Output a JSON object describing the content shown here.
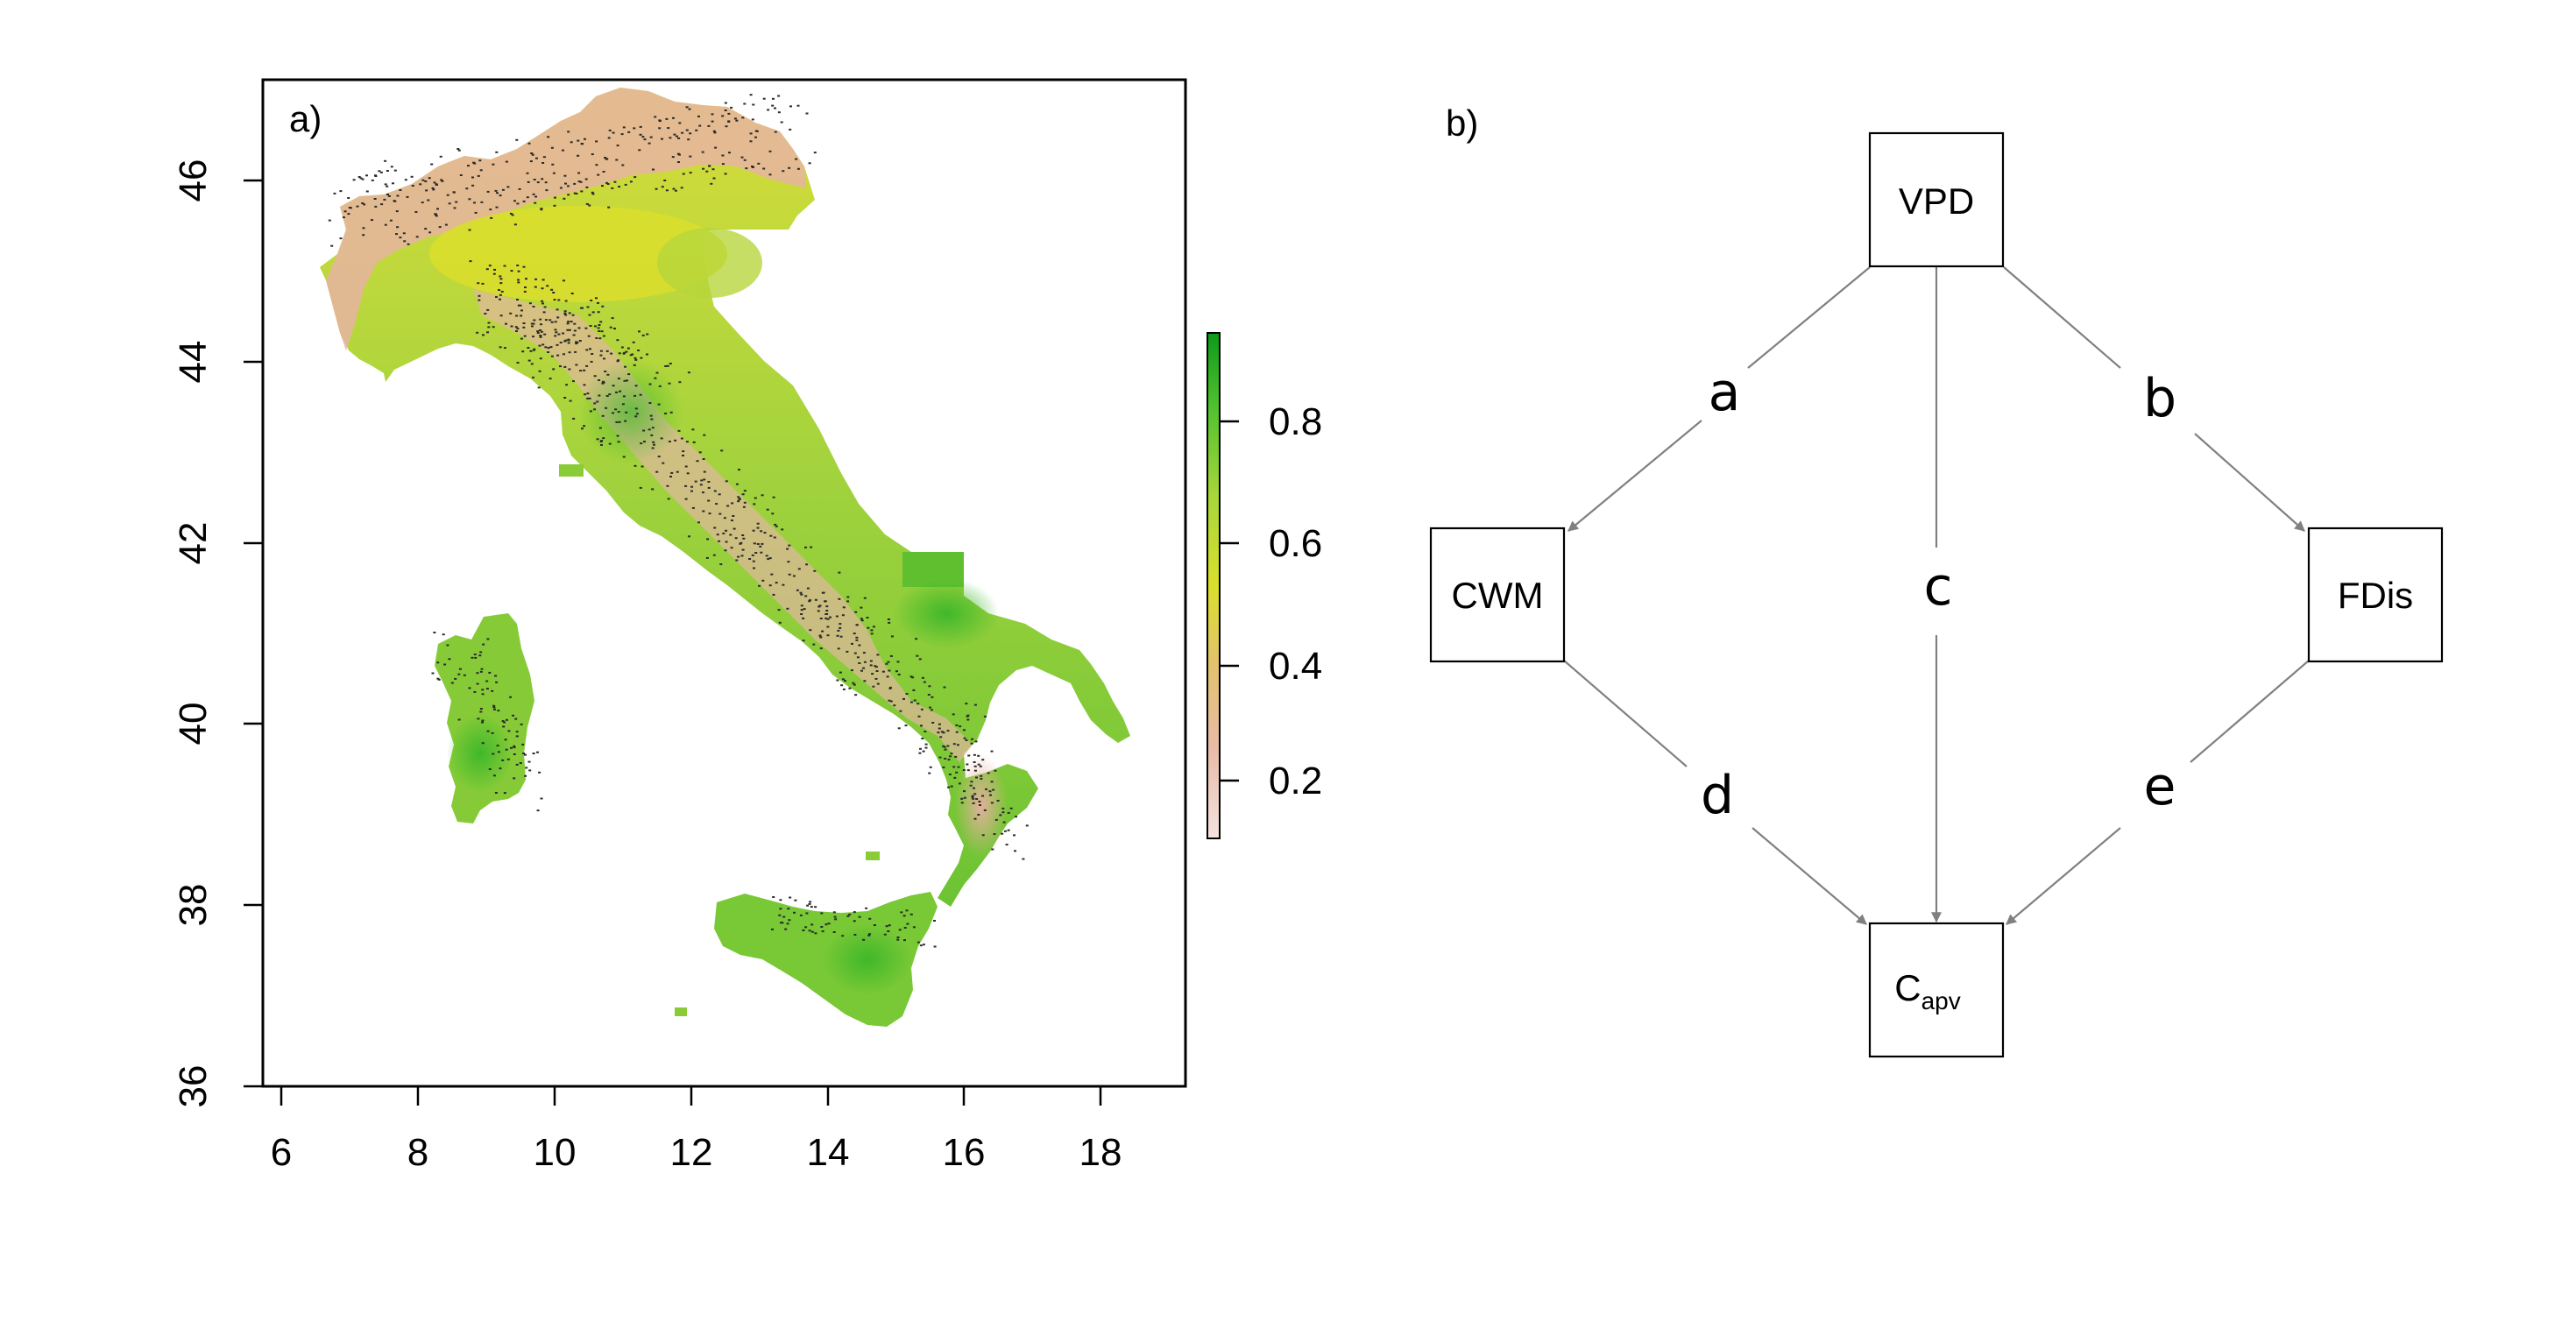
{
  "panel_a": {
    "label": "a)",
    "x_ticks": [
      "6",
      "8",
      "10",
      "12",
      "14",
      "16",
      "18"
    ],
    "y_ticks": [
      "36",
      "38",
      "40",
      "42",
      "44",
      "46"
    ],
    "colorbar": {
      "ticks": [
        "0.2",
        "0.4",
        "0.6",
        "0.8"
      ],
      "colors": [
        "#f2dcd6",
        "#e6b595",
        "#dfc35a",
        "#d9de2a",
        "#9ad43e",
        "#4ec130",
        "#0f9c1a"
      ]
    },
    "map_colors": {
      "low": "#e8b9a8",
      "mid": "#d9dd3a",
      "high": "#62c02e",
      "dots": "#2b2b2b"
    }
  },
  "panel_b": {
    "label": "b)",
    "nodes": {
      "vpd": "VPD",
      "cwm": "CWM",
      "fdis": "FDis",
      "capv_main": "C",
      "capv_sub": "apv"
    },
    "paths": {
      "a": "a",
      "b": "b",
      "c": "c",
      "d": "d",
      "e": "e"
    },
    "arrow_color": "#808080"
  }
}
